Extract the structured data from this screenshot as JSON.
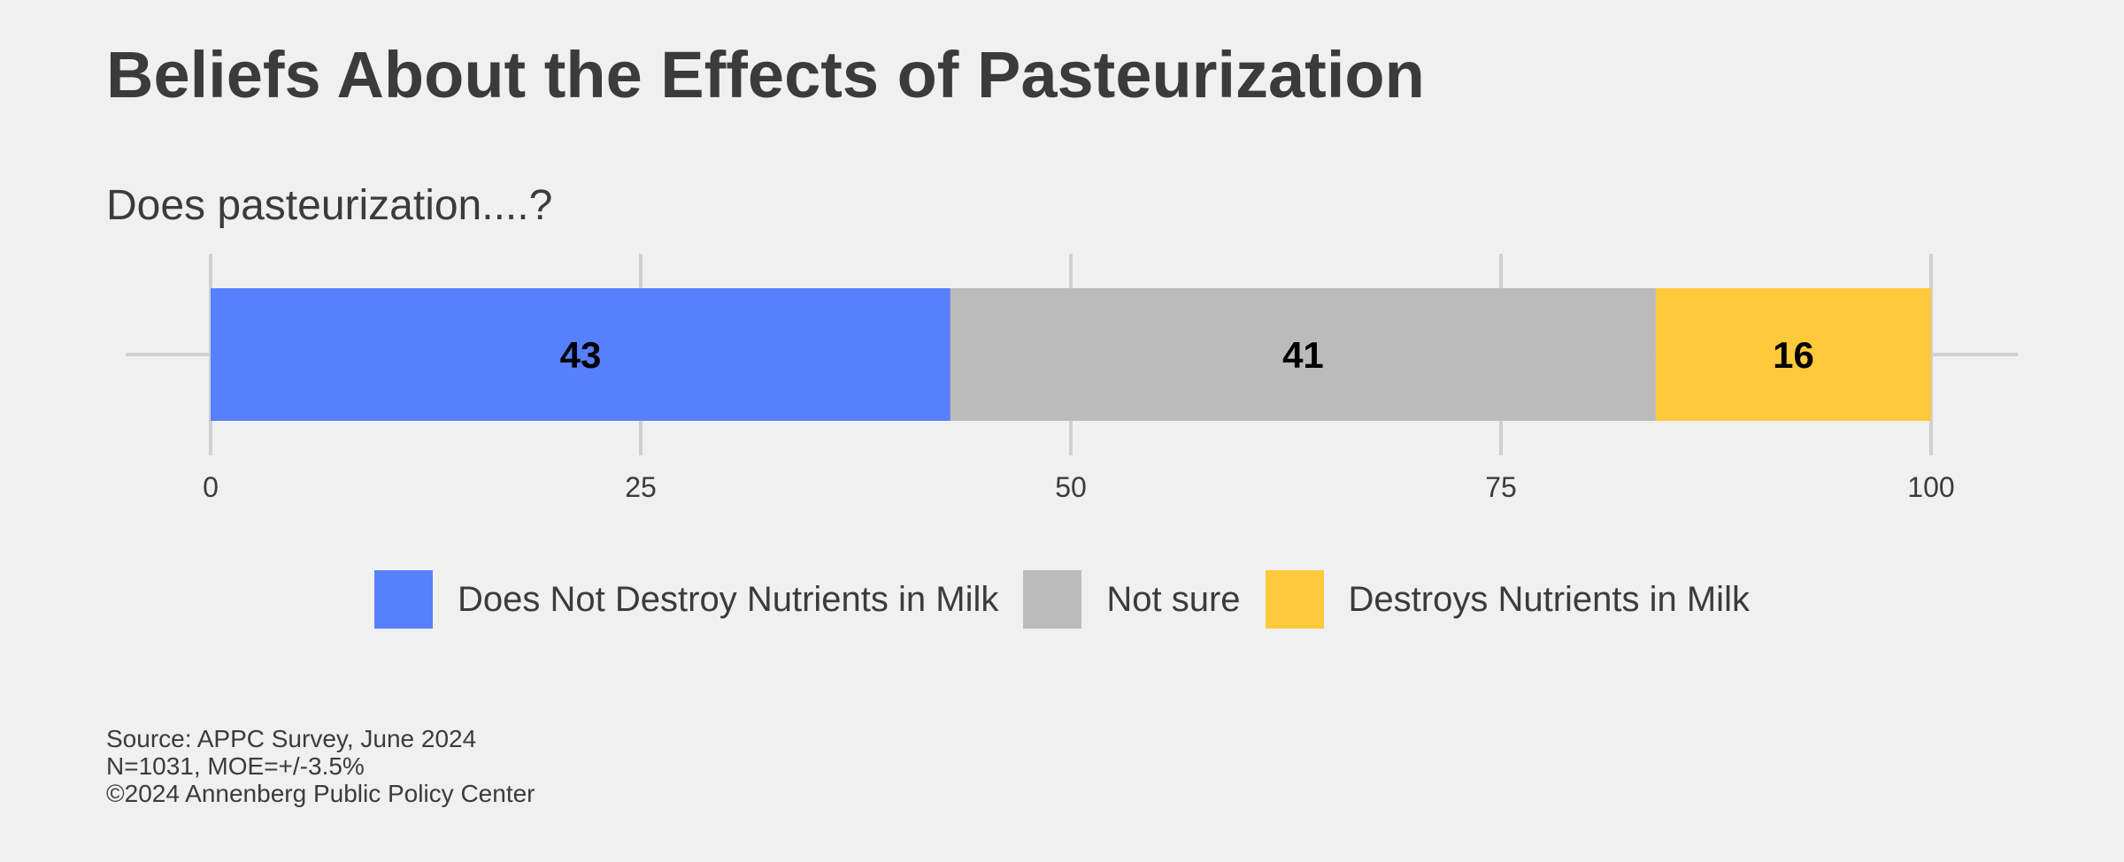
{
  "chart_data": {
    "type": "bar",
    "orientation": "horizontal",
    "stacked": true,
    "title": "Beliefs About the Effects of Pasteurization",
    "subtitle": "Does pasteurization....?",
    "xlim": [
      0,
      100
    ],
    "x_ticks": [
      0,
      25,
      50,
      75,
      100
    ],
    "grid": true,
    "legend_position": "bottom",
    "series": [
      {
        "name": "Does Not Destroy Nutrients in Milk",
        "value": 43,
        "label": "43",
        "color": "#5780ff"
      },
      {
        "name": "Not sure",
        "value": 41,
        "label": "41",
        "color": "#bbbbbb"
      },
      {
        "name": "Destroys Nutrients in Milk",
        "value": 16,
        "label": "16",
        "color": "#ffc93c"
      }
    ]
  },
  "footer": {
    "source": "Source: APPC Survey, June 2024",
    "sample": "N=1031, MOE=+/-3.5%",
    "copyright": "©2024 Annenberg Public Policy Center"
  }
}
